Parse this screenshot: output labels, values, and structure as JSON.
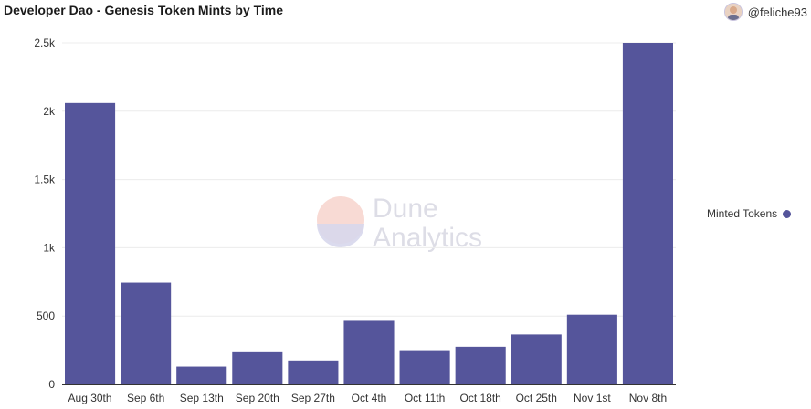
{
  "header": {
    "title": "Developer Dao - Genesis Token Mints by Time",
    "username": "@feliche93"
  },
  "watermark": {
    "line1": "Dune",
    "line2": "Analytics"
  },
  "colors": {
    "bar": "#55559b",
    "grid": "#ececec",
    "axis": "#333333",
    "tick_text": "#333333"
  },
  "chart_data": {
    "type": "bar",
    "categories": [
      "Aug 30th",
      "Sep 6th",
      "Sep 13th",
      "Sep 20th",
      "Sep 27th",
      "Oct 4th",
      "Oct 11th",
      "Oct 18th",
      "Oct 25th",
      "Nov 1st",
      "Nov 8th"
    ],
    "series": [
      {
        "name": "Minted Tokens",
        "values": [
          2060,
          745,
          130,
          235,
          175,
          465,
          250,
          275,
          365,
          510,
          2500
        ]
      }
    ],
    "ylim": [
      0,
      2500
    ],
    "yticks": [
      0,
      500,
      1000,
      1500,
      2000,
      2500
    ],
    "ytick_labels": [
      "0",
      "500",
      "1k",
      "1.5k",
      "2k",
      "2.5k"
    ],
    "grid": true,
    "legend": "right"
  }
}
